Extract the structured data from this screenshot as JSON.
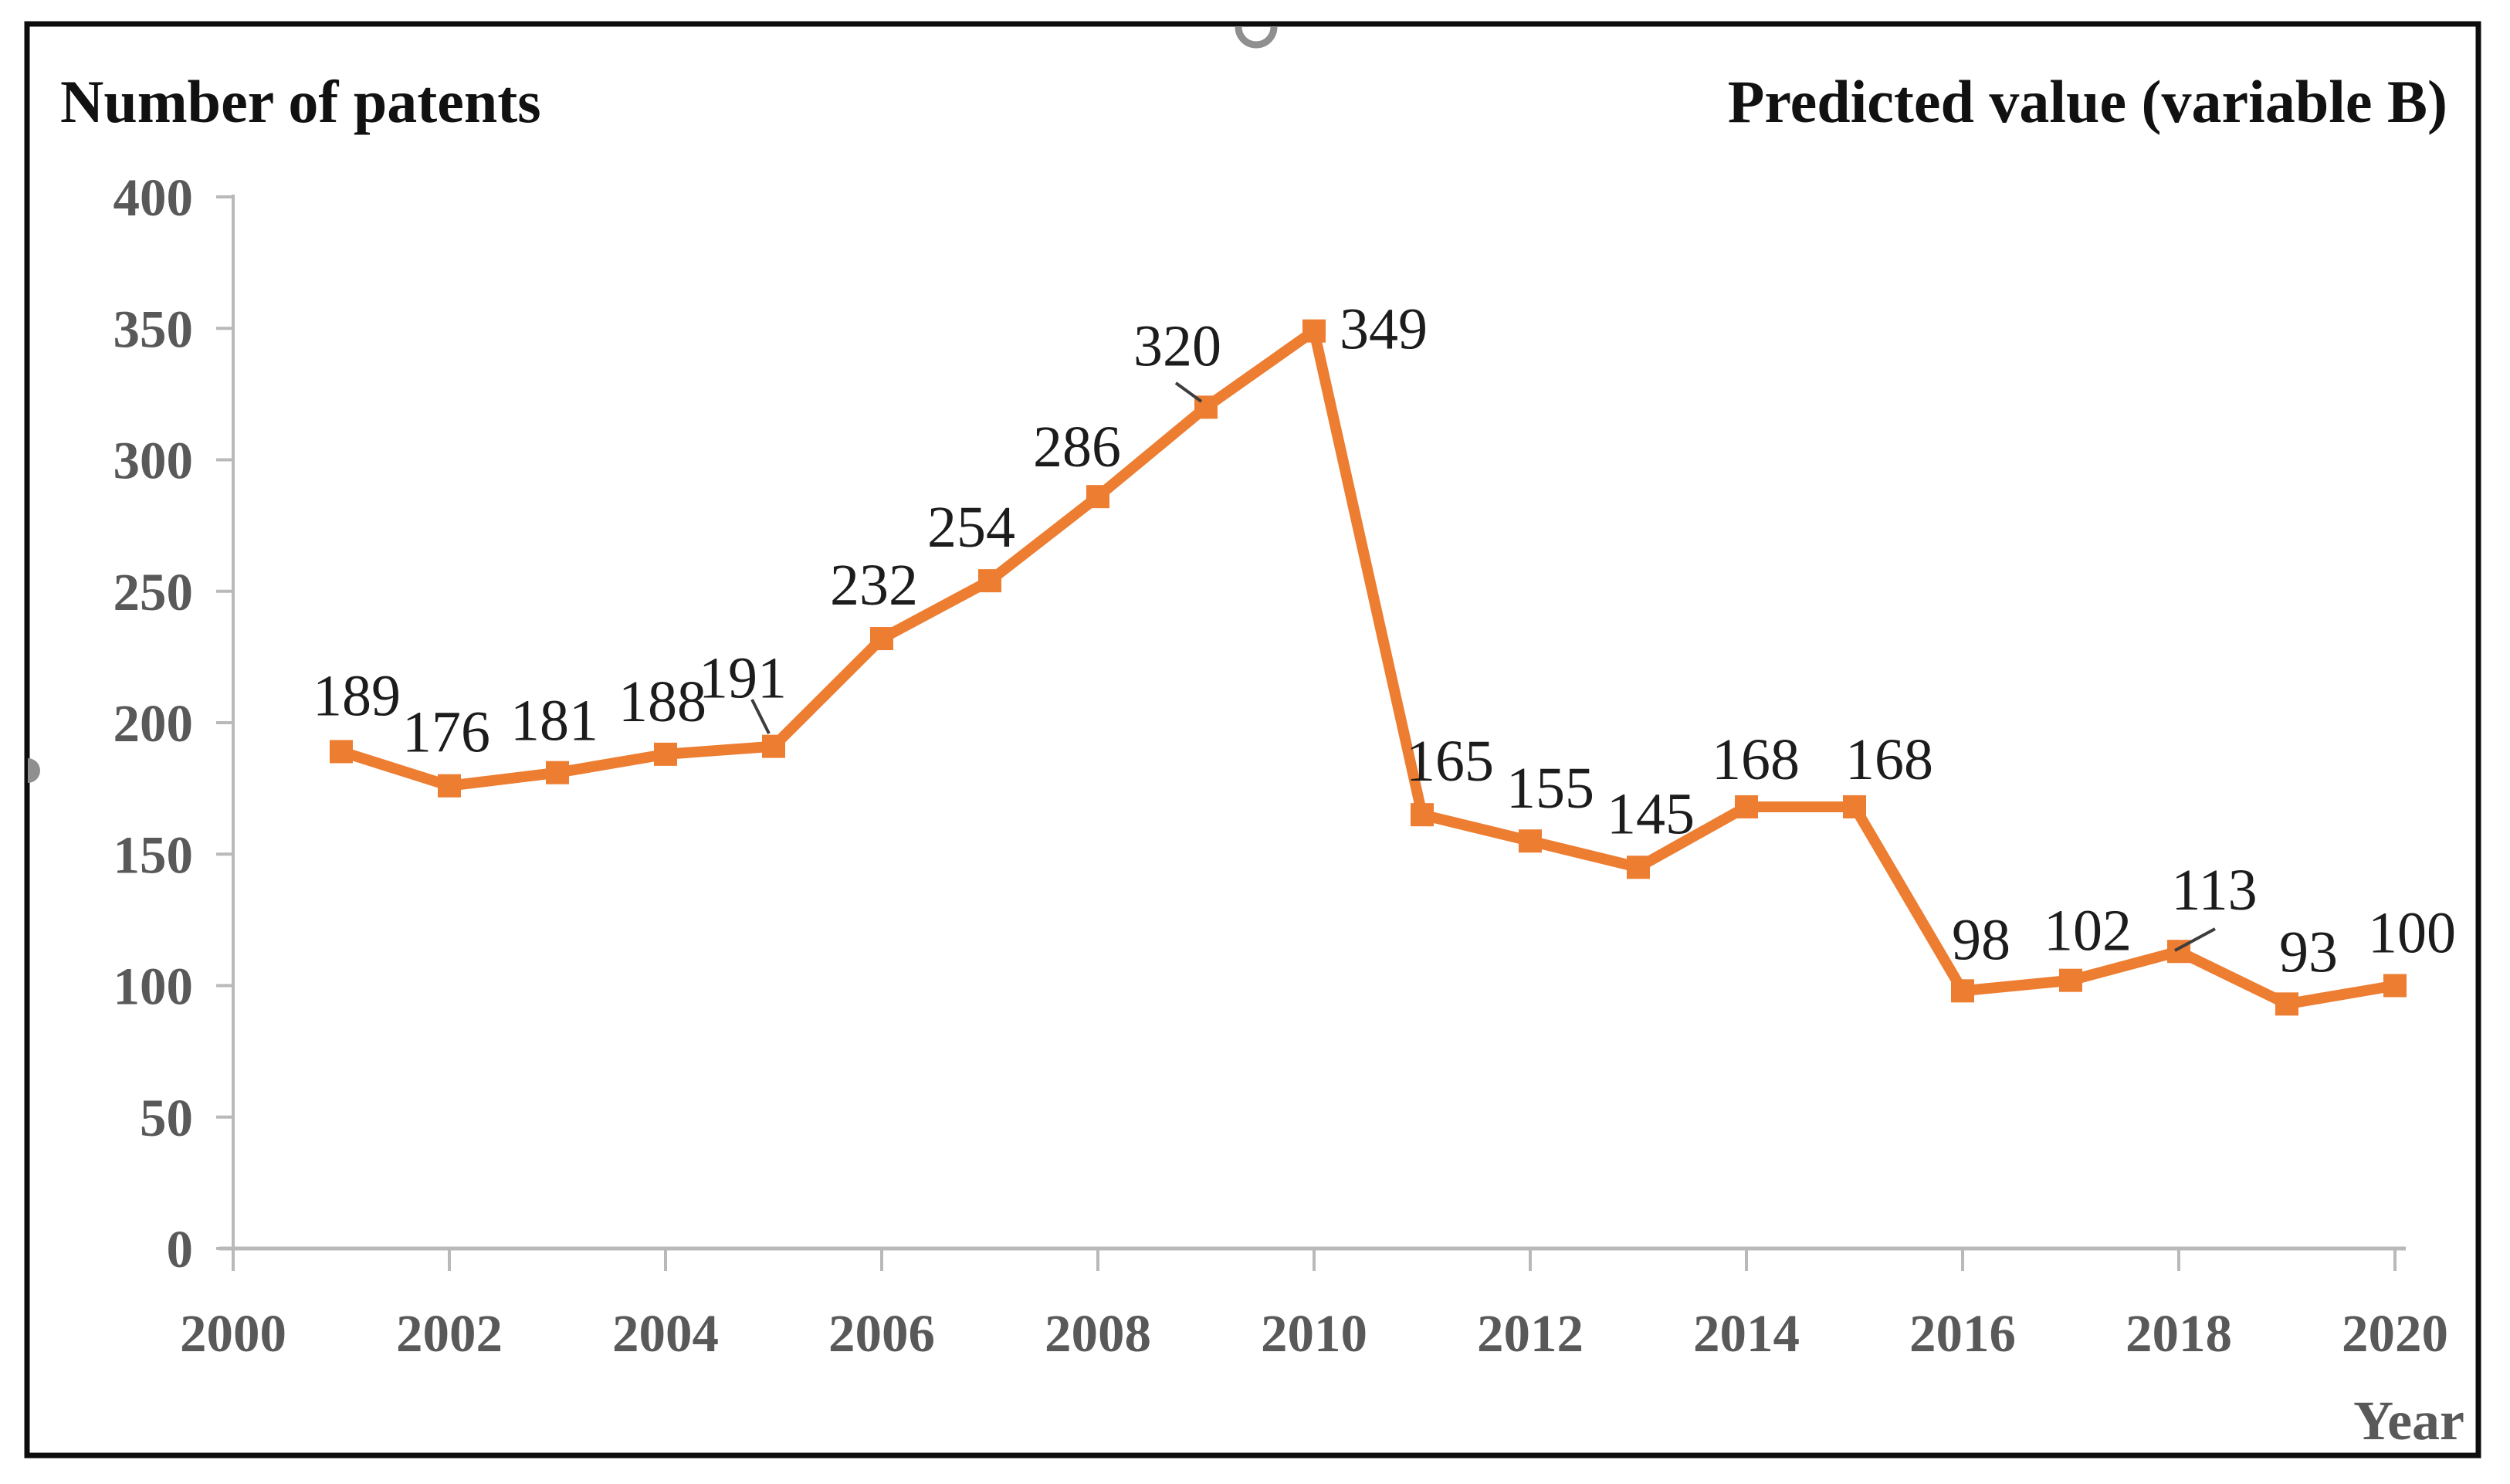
{
  "figure": {
    "left_title": "Number of patents",
    "right_title": "Predicted value (variable B)",
    "x_axis_title": "Year"
  },
  "chart_data": {
    "type": "line",
    "title": "Predicted value (variable B)",
    "ylabel": "Number of patents",
    "xlabel": "Year",
    "x": [
      2001,
      2002,
      2003,
      2004,
      2005,
      2006,
      2007,
      2008,
      2009,
      2010,
      2011,
      2012,
      2013,
      2014,
      2015,
      2016,
      2017,
      2018,
      2019,
      2020
    ],
    "series": [
      {
        "name": "Number of patents",
        "values": [
          189,
          176,
          181,
          188,
          191,
          232,
          254,
          286,
          320,
          349,
          165,
          155,
          145,
          168,
          168,
          98,
          102,
          113,
          93,
          100
        ]
      }
    ],
    "data_labels_visible": true,
    "callout_labels": [
      191,
      320,
      113
    ],
    "marker": "square",
    "grid": false,
    "legend_position": "none",
    "xlim": [
      2000,
      2020
    ],
    "ylim": [
      0,
      400
    ],
    "x_ticks": [
      2000,
      2002,
      2004,
      2006,
      2008,
      2010,
      2012,
      2014,
      2016,
      2018,
      2020
    ],
    "y_ticks": [
      0,
      50,
      100,
      150,
      200,
      250,
      300,
      350,
      400
    ]
  },
  "colors": {
    "series_orange": "#ED7D31",
    "axis_line": "#b9b9b9",
    "tick_label_gray": "#595959",
    "data_label_black": "#1c1c1c",
    "frame_black": "#0d0d0d",
    "handle_gray": "#8f8f8f",
    "leader_line": "#3d3d3d"
  }
}
